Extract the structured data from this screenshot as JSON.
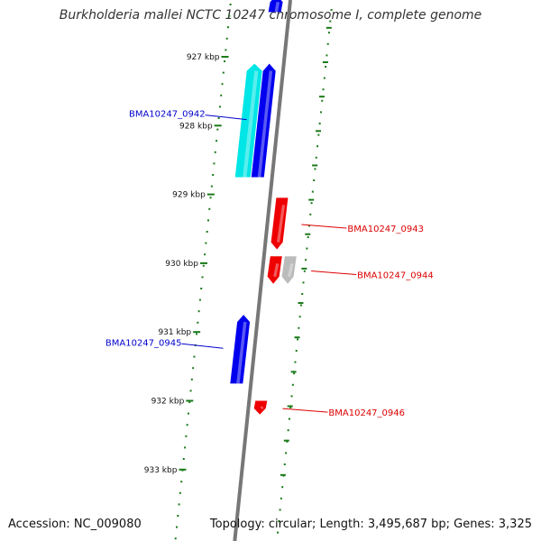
{
  "title": "Burkholderia mallei NCTC 10247 chromosome I, complete genome",
  "footer": {
    "accession": "Accession: NC_009080",
    "summary": "Topology: circular; Length: 3,495,687 bp; Genes: 3,325"
  },
  "colors": {
    "backbone": "#777777",
    "tick": "#1a7a1a",
    "forward_gene": "#0000ee",
    "forward_gene_alt": "#00e5e5",
    "reverse_gene": "#ee0000",
    "reverse_gene_alt": "#bbbbbb",
    "forward_label": "#0000cc",
    "reverse_label": "#dd0000"
  },
  "kbp_marks": [
    {
      "label": "927 kbp",
      "kbp": 927
    },
    {
      "label": "928 kbp",
      "kbp": 928
    },
    {
      "label": "929 kbp",
      "kbp": 929
    },
    {
      "label": "930 kbp",
      "kbp": 930
    },
    {
      "label": "931 kbp",
      "kbp": 931
    },
    {
      "label": "932 kbp",
      "kbp": 932
    },
    {
      "label": "933 kbp",
      "kbp": 933
    }
  ],
  "genes": [
    {
      "name": "",
      "strand": "forward",
      "color": "#0000ee",
      "start_kbp": 926.1,
      "end_kbp": 926.35,
      "label": ""
    },
    {
      "name": "",
      "strand": "forward",
      "color": "#00e5e5",
      "start_kbp": 927.1,
      "end_kbp": 928.75,
      "label": ""
    },
    {
      "name": "BMA10247_0942",
      "strand": "forward",
      "color": "#0000ee",
      "start_kbp": 927.1,
      "end_kbp": 928.75,
      "label": "BMA10247_0942"
    },
    {
      "name": "BMA10247_0943",
      "strand": "reverse",
      "color": "#ee0000",
      "start_kbp": 929.05,
      "end_kbp": 929.8,
      "label": "BMA10247_0943"
    },
    {
      "name": "",
      "strand": "reverse",
      "color": "#ee0000",
      "start_kbp": 929.9,
      "end_kbp": 930.3,
      "label": ""
    },
    {
      "name": "BMA10247_0944",
      "strand": "reverse",
      "color": "#bbbbbb",
      "start_kbp": 929.9,
      "end_kbp": 930.3,
      "label": "BMA10247_0944"
    },
    {
      "name": "BMA10247_0945",
      "strand": "forward",
      "color": "#0000ee",
      "start_kbp": 930.75,
      "end_kbp": 931.75,
      "label": "BMA10247_0945"
    },
    {
      "name": "BMA10247_0946",
      "strand": "reverse",
      "color": "#ee0000",
      "start_kbp": 932.0,
      "end_kbp": 932.2,
      "label": "BMA10247_0946"
    }
  ]
}
